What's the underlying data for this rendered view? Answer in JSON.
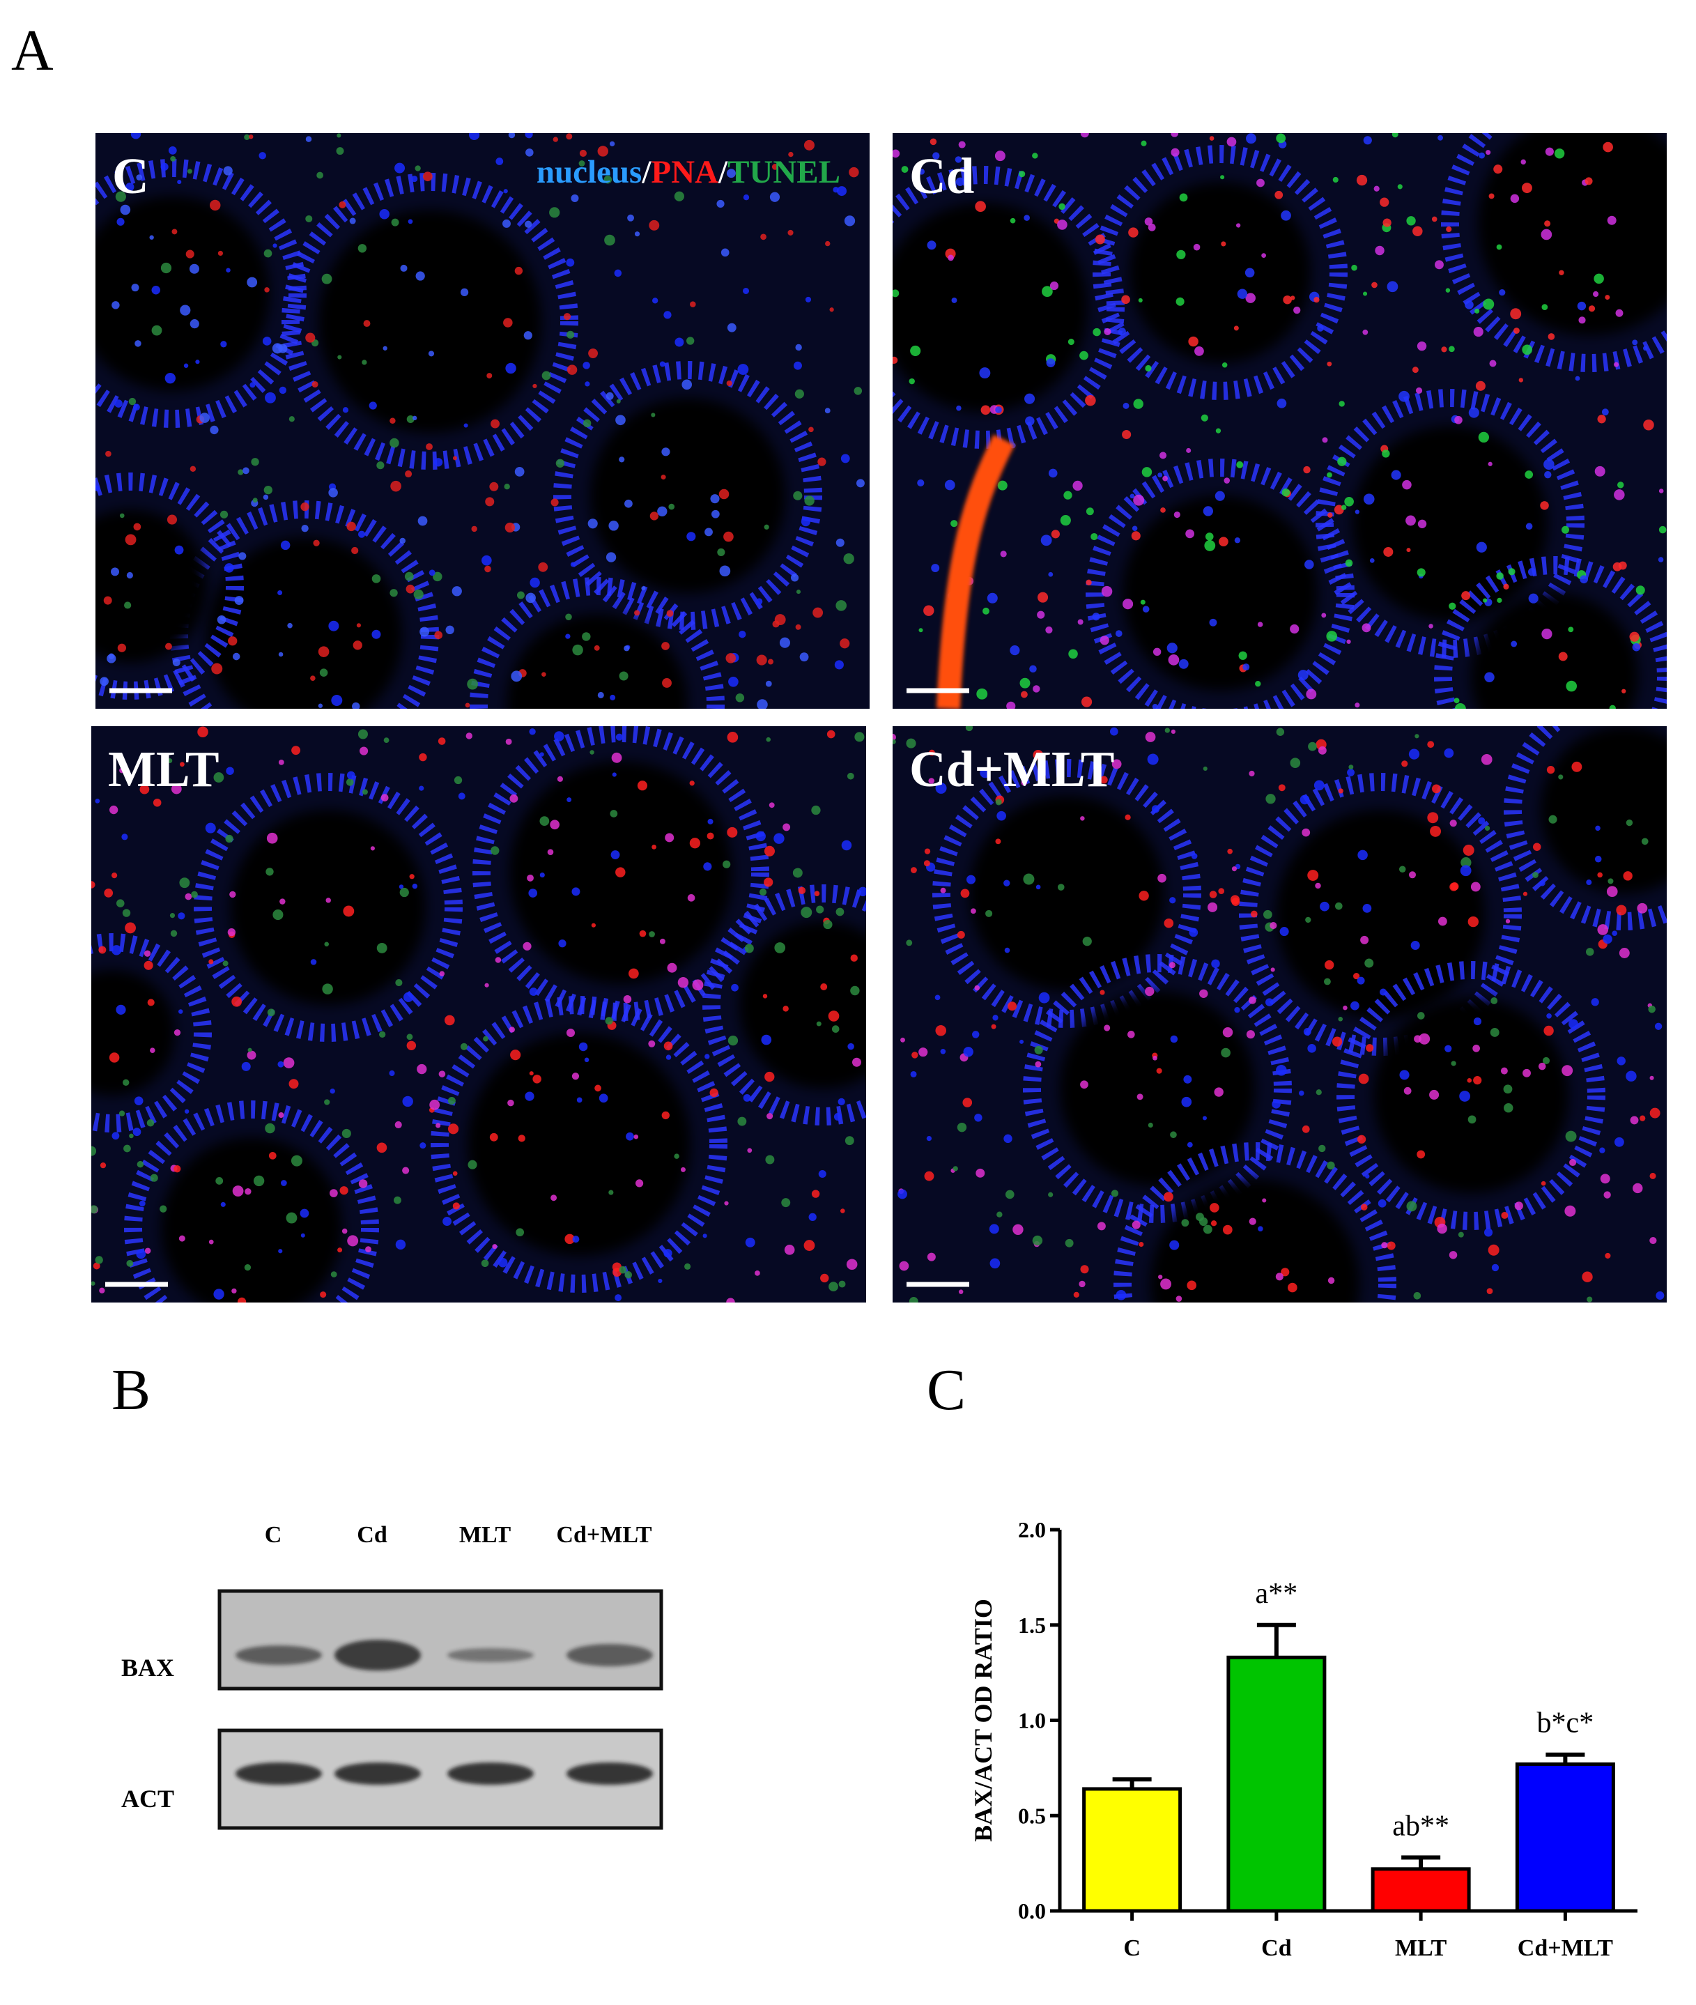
{
  "panel_a": {
    "label": "A",
    "legend_parts": [
      {
        "text": "nucleus",
        "color": "#2a9cff"
      },
      {
        "text": "/",
        "color": "#ffffff"
      },
      {
        "text": "PNA",
        "color": "#ff1a1a"
      },
      {
        "text": "/",
        "color": "#ffffff"
      },
      {
        "text": "TUNEL",
        "color": "#22a84a"
      }
    ],
    "images": [
      {
        "label": "C"
      },
      {
        "label": "Cd"
      },
      {
        "label": "MLT"
      },
      {
        "label": "Cd+MLT"
      }
    ]
  },
  "panel_b": {
    "label": "B",
    "lanes": [
      "C",
      "Cd",
      "MLT",
      "Cd+MLT"
    ],
    "rows": [
      "BAX",
      "ACT"
    ]
  },
  "panel_c": {
    "label": "C"
  },
  "chart_data": {
    "type": "bar",
    "y_label": "BAX/ACT OD RATIO",
    "categories": [
      "C",
      "Cd",
      "MLT",
      "Cd+MLT"
    ],
    "values": [
      0.64,
      1.33,
      0.22,
      0.77
    ],
    "errors": [
      0.05,
      0.17,
      0.06,
      0.05
    ],
    "colors": [
      "#ffff00",
      "#00c400",
      "#ff0000",
      "#0000ff"
    ],
    "annotations": [
      null,
      "a**",
      "ab**",
      "b*c*"
    ],
    "ylim": [
      0,
      2
    ],
    "yticks": [
      {
        "value": 0,
        "label": "0.0"
      },
      0.5,
      {
        "value": 1,
        "label": "1.0"
      },
      1.5,
      {
        "value": 2,
        "label": "2.0"
      }
    ]
  }
}
